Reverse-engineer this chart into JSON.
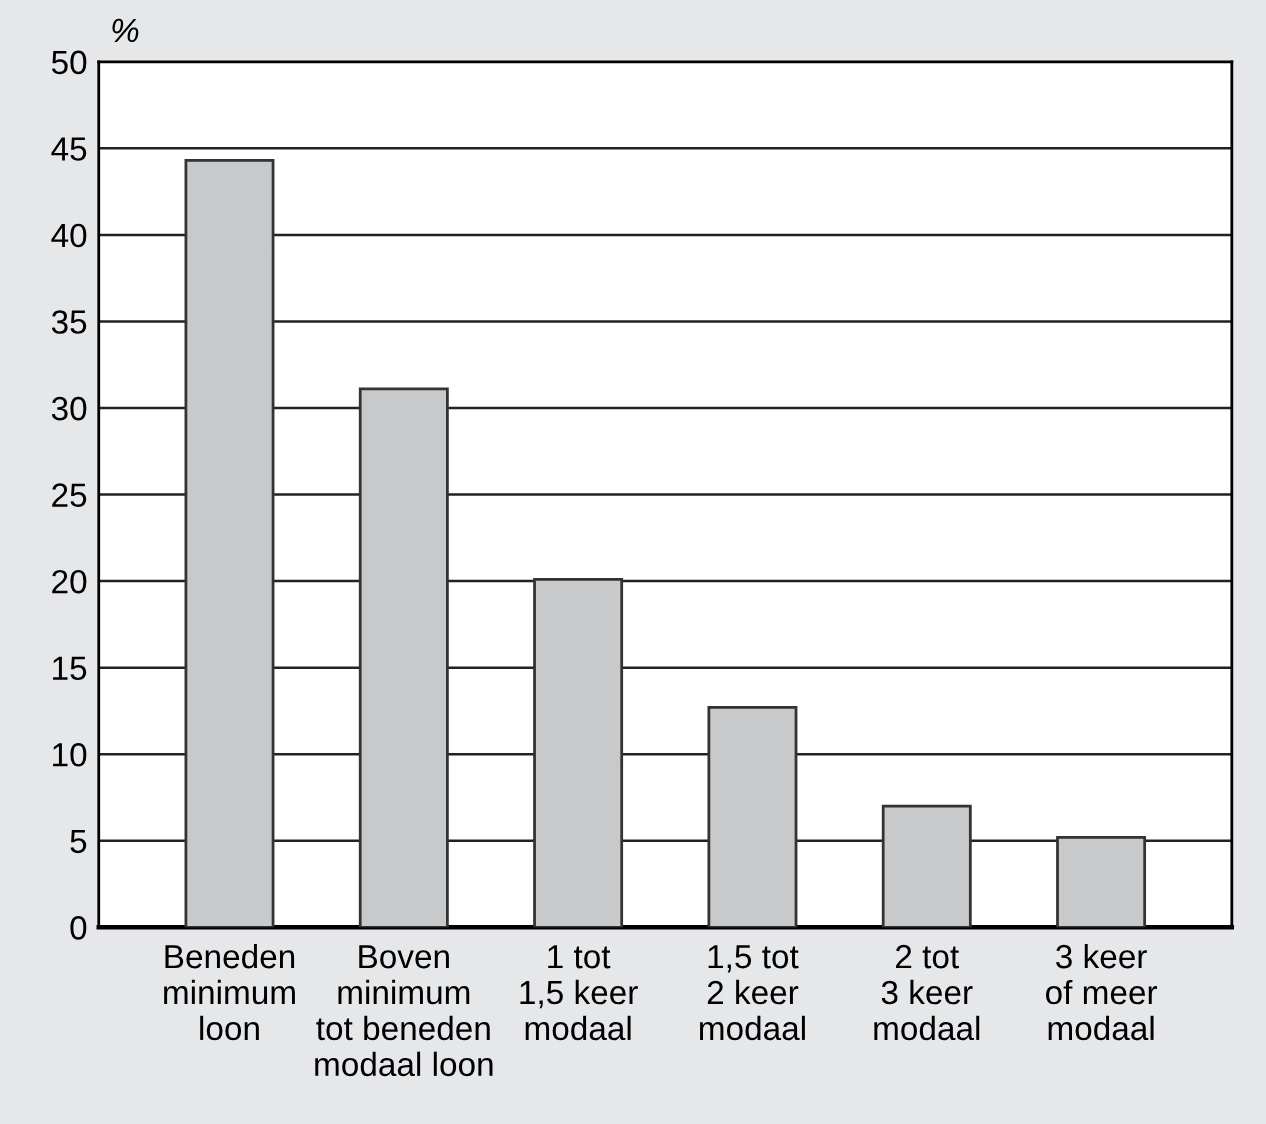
{
  "chart_data": {
    "type": "bar",
    "ylabel": "%",
    "categories": [
      "Beneden\nminimum\nloon",
      "Boven\nminimum\ntot beneden\nmodaal loon",
      "1 tot\n1,5 keer\nmodaal",
      "1,5 tot\n2 keer\nmodaal",
      "2 tot\n3 keer\nmodaal",
      "3 keer\nof meer\nmodaal"
    ],
    "values": [
      44.3,
      31.1,
      20.1,
      12.7,
      7.0,
      5.2
    ],
    "color": "#c8c9cb",
    "ylim": [
      0,
      50
    ],
    "yticks": [
      0,
      5,
      10,
      15,
      20,
      25,
      30,
      35,
      40,
      45,
      50
    ],
    "grid": "y",
    "legend": false
  }
}
